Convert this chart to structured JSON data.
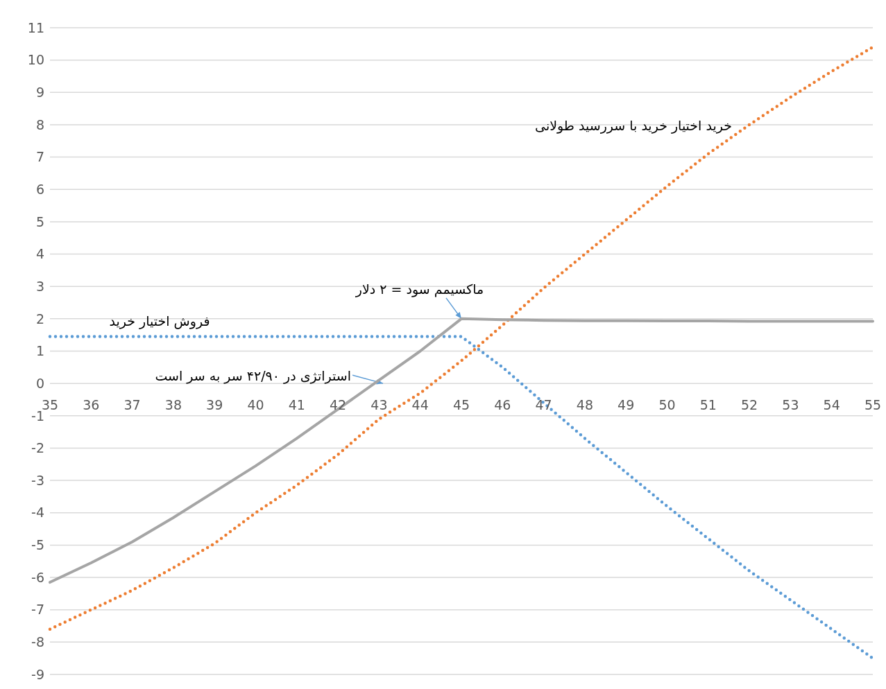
{
  "chart_data": {
    "type": "line",
    "categories": [
      "35",
      "36",
      "37",
      "38",
      "39",
      "40",
      "41",
      "42",
      "43",
      "44",
      "45",
      "46",
      "47",
      "48",
      "49",
      "50",
      "51",
      "52",
      "53",
      "54",
      "55"
    ],
    "series": [
      {
        "name": "خرید اختیار خرید با سررسید طولانی",
        "color": "#ed7d31",
        "line_style": "dotted",
        "values": [
          -7.6,
          -7.0,
          -6.4,
          -5.7,
          -4.95,
          -4.0,
          -3.15,
          -2.2,
          -1.1,
          -0.3,
          0.7,
          1.8,
          2.95,
          4.0,
          5.05,
          6.1,
          7.1,
          8.0,
          8.85,
          9.65,
          10.4
        ]
      },
      {
        "name": "فروش اختیار خرید",
        "color": "#5b9bd5",
        "line_style": "dotted",
        "values": [
          1.45,
          1.45,
          1.45,
          1.45,
          1.45,
          1.45,
          1.45,
          1.45,
          1.45,
          1.45,
          1.45,
          0.5,
          -0.6,
          -1.7,
          -2.75,
          -3.8,
          -4.8,
          -5.8,
          -6.7,
          -7.6,
          -8.5
        ]
      },
      {
        "color": "#a5a5a5",
        "line_style": "solid",
        "values": [
          -6.15,
          -5.55,
          -4.9,
          -4.15,
          -3.35,
          -2.55,
          -1.7,
          -0.8,
          0.1,
          1.0,
          2.0,
          1.97,
          1.95,
          1.94,
          1.94,
          1.93,
          1.93,
          1.92,
          1.92,
          1.92,
          1.92
        ]
      }
    ],
    "annotations": [
      {
        "text": "ماکسیمم سود = ۲ دلار",
        "x": "45",
        "y": 2
      },
      {
        "text": "استراتژی در ۴۲/۹۰ سر به سر است",
        "x": "43",
        "y": 0
      }
    ],
    "ylim": [
      -9,
      11
    ],
    "yticks": [
      -9,
      -8,
      -7,
      -6,
      -5,
      -4,
      -3,
      -2,
      -1,
      0,
      1,
      2,
      3,
      4,
      5,
      6,
      7,
      8,
      9,
      10,
      11
    ],
    "grid": "y"
  }
}
